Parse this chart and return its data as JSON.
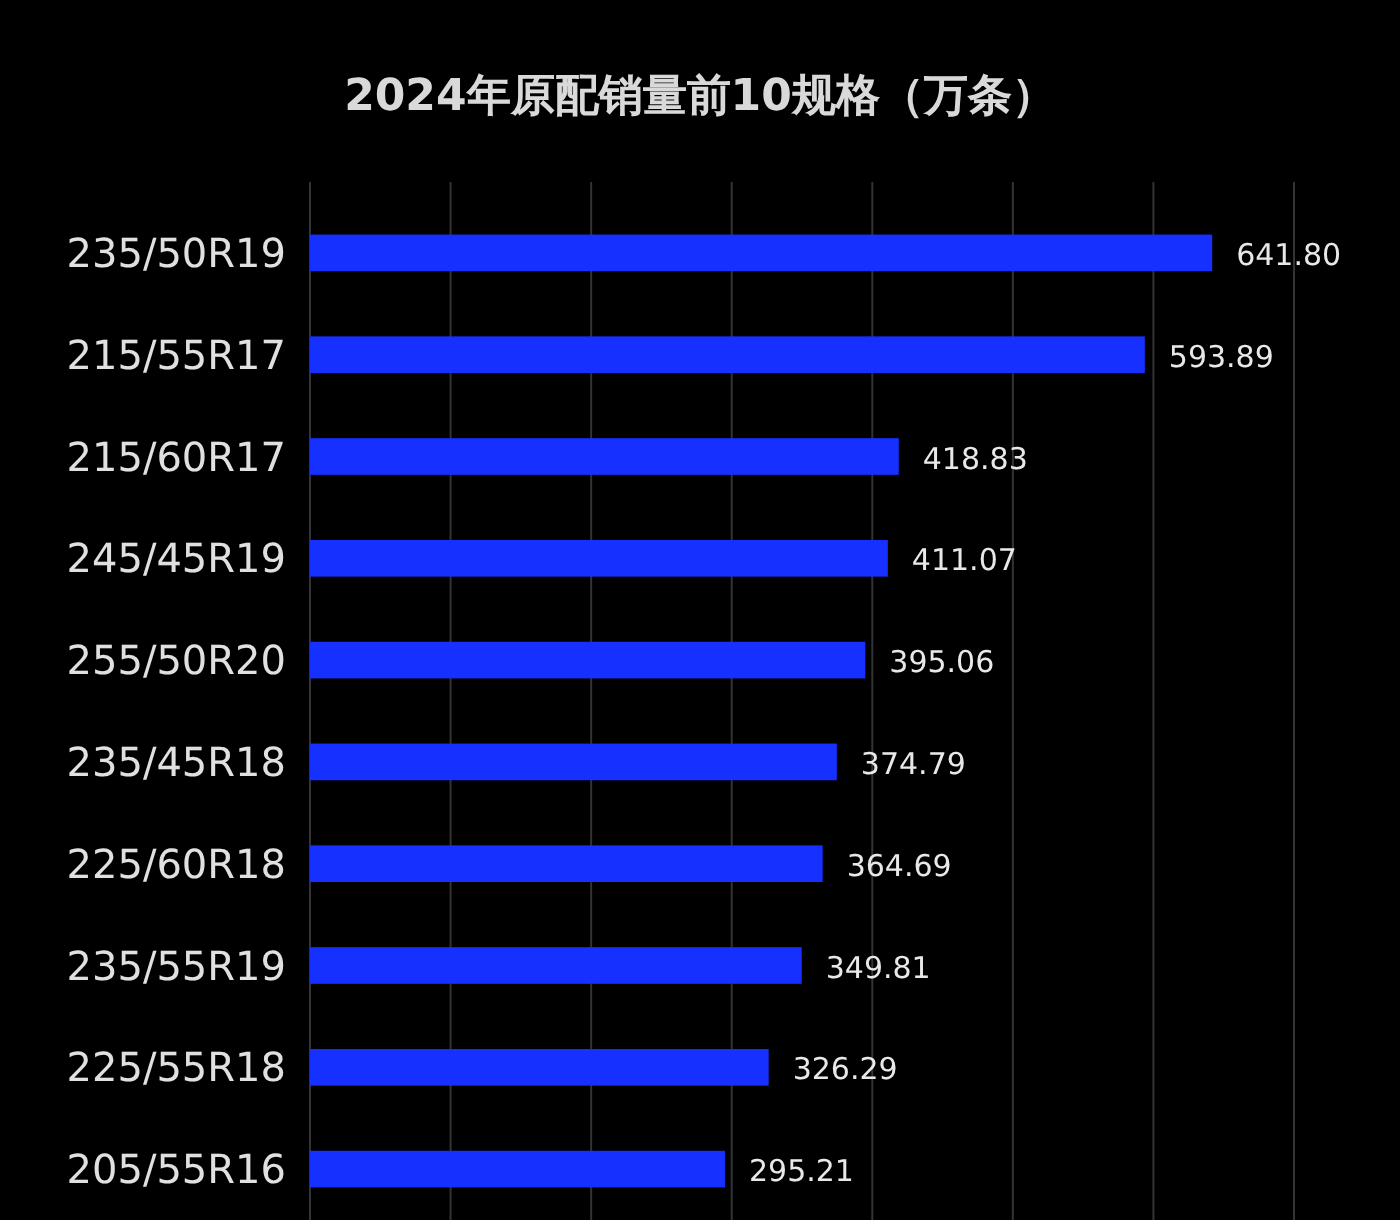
{
  "chart_data": {
    "type": "bar",
    "orientation": "horizontal",
    "title": "2024年原配销量前10规格（万条）",
    "categories": [
      "235/50R19",
      "215/55R17",
      "215/60R17",
      "245/45R19",
      "255/50R20",
      "235/45R18",
      "225/60R18",
      "235/55R19",
      "225/55R18",
      "205/55R16"
    ],
    "values": [
      641.8,
      593.89,
      418.83,
      411.07,
      395.06,
      374.79,
      364.69,
      349.81,
      326.29,
      295.21
    ],
    "value_labels": [
      "641.80",
      "593.89",
      "418.83",
      "411.07",
      "395.06",
      "374.79",
      "364.69",
      "349.81",
      "326.29",
      "295.21"
    ],
    "color": "#1530ff",
    "xlim": [
      0,
      700
    ],
    "xticks": [
      {
        "value": 0,
        "label": null
      },
      {
        "value": 100,
        "label": null
      },
      {
        "value": 200,
        "label": null
      },
      {
        "value": 300,
        "label": null
      },
      {
        "value": 400,
        "label": null
      },
      {
        "value": 500,
        "label": null
      },
      {
        "value": 600,
        "label": null
      },
      {
        "value": 700,
        "label": null
      }
    ],
    "grid": "x",
    "tick_labels": "y"
  }
}
